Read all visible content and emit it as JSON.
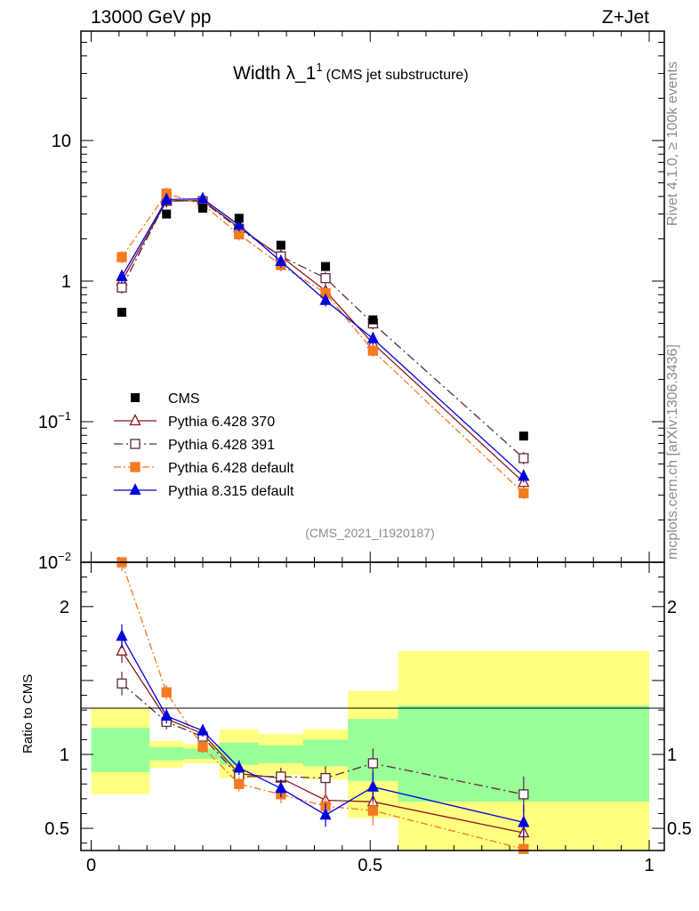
{
  "header": {
    "left": "13000 GeV pp",
    "right": "Z+Jet"
  },
  "chart_data": {
    "type": "line",
    "title": "Width λ_1",
    "title_sup": "1",
    "subtitle": "(CMS jet substructure)",
    "analysis_tag": "(CMS_2021_I1920187)",
    "side_top": "Rivet 4.1.0, ≥ 100k events",
    "side_bottom": "mcplots.cern.ch [arXiv:1306.3436]",
    "ratio_ylabel": "Ratio to CMS",
    "main_yscale": "log",
    "main_ylim": [
      0.01,
      60
    ],
    "main_yticks": [
      {
        "value": 10,
        "base": "10",
        "sup": ""
      },
      {
        "value": 1,
        "base": "1",
        "sup": ""
      },
      {
        "value": 0.1,
        "base": "10",
        "sup": "−1"
      },
      {
        "value": 0.01,
        "base": "10",
        "sup": "−2"
      }
    ],
    "ratio_ylim": [
      0.35,
      2.3
    ],
    "ratio_yticks": [
      {
        "value": 2,
        "label": "2"
      },
      {
        "value": 1,
        "label": "1"
      },
      {
        "value": 0.5,
        "label": "0.5"
      }
    ],
    "xlim": [
      0,
      1
    ],
    "xticks": [
      {
        "value": 0,
        "label": "0"
      },
      {
        "value": 0.5,
        "label": "0.5"
      },
      {
        "value": 1,
        "label": "1"
      }
    ],
    "x": [
      0.055,
      0.135,
      0.2,
      0.265,
      0.34,
      0.42,
      0.505,
      0.775
    ],
    "bin_edges": [
      0,
      0.105,
      0.165,
      0.23,
      0.3,
      0.38,
      0.46,
      0.55,
      1.0
    ],
    "cms": [
      0.6,
      3.0,
      3.3,
      2.8,
      1.8,
      1.27,
      0.53,
      0.079
    ],
    "ratio_band_inner": [
      [
        0.88,
        1.18
      ],
      [
        0.96,
        1.05
      ],
      [
        0.97,
        1.04
      ],
      [
        0.93,
        1.08
      ],
      [
        0.94,
        1.06
      ],
      [
        0.92,
        1.1
      ],
      [
        0.82,
        1.24
      ],
      [
        0.68,
        1.33
      ]
    ],
    "ratio_band_outer": [
      [
        0.73,
        1.31
      ],
      [
        0.91,
        1.09
      ],
      [
        0.94,
        1.07
      ],
      [
        0.84,
        1.17
      ],
      [
        0.86,
        1.14
      ],
      [
        0.83,
        1.17
      ],
      [
        0.57,
        1.43
      ],
      [
        0.34,
        1.7
      ]
    ],
    "series": [
      {
        "name": "Pythia 6.428 370",
        "color": "#8b1a1a",
        "marker": "triangle-open",
        "dash": "",
        "values": [
          1.0,
          3.7,
          3.75,
          2.4,
          1.5,
          0.85,
          0.36,
          0.037
        ],
        "ratio": [
          1.7,
          1.24,
          1.14,
          0.87,
          0.84,
          0.69,
          0.68,
          0.47
        ],
        "ratio_err": [
          0.08,
          0.05,
          0.04,
          0.05,
          0.06,
          0.08,
          0.1,
          0.12
        ]
      },
      {
        "name": "Pythia 6.428 391",
        "color": "#5a2a35",
        "marker": "square-open",
        "dash": "10,4,2,4",
        "values": [
          0.9,
          3.75,
          3.7,
          2.35,
          1.5,
          1.05,
          0.5,
          0.055
        ],
        "ratio": [
          1.48,
          1.22,
          1.12,
          0.85,
          0.85,
          0.84,
          0.94,
          0.73
        ],
        "ratio_err": [
          0.08,
          0.05,
          0.04,
          0.05,
          0.06,
          0.08,
          0.1,
          0.12
        ]
      },
      {
        "name": "Pythia 6.428 default",
        "color": "#f47a20",
        "marker": "square-filled",
        "dash": "8,3,2,3",
        "values": [
          1.48,
          4.2,
          3.5,
          2.15,
          1.3,
          0.82,
          0.32,
          0.031
        ],
        "ratio": [
          2.3,
          1.42,
          1.05,
          0.8,
          0.73,
          0.65,
          0.62,
          0.36
        ],
        "ratio_err": [
          0.06,
          0.05,
          0.04,
          0.05,
          0.06,
          0.08,
          0.1,
          0.12
        ]
      },
      {
        "name": "Pythia 8.315 default",
        "color": "#0000dd",
        "marker": "triangle-filled",
        "dash": "",
        "values": [
          1.08,
          3.8,
          3.85,
          2.5,
          1.38,
          0.73,
          0.39,
          0.041
        ],
        "ratio": [
          1.8,
          1.26,
          1.16,
          0.91,
          0.77,
          0.59,
          0.78,
          0.54
        ],
        "ratio_err": [
          0.08,
          0.05,
          0.04,
          0.05,
          0.06,
          0.08,
          0.1,
          0.12
        ]
      }
    ],
    "legend": {
      "data_label": "CMS",
      "position": "lower-left"
    }
  }
}
